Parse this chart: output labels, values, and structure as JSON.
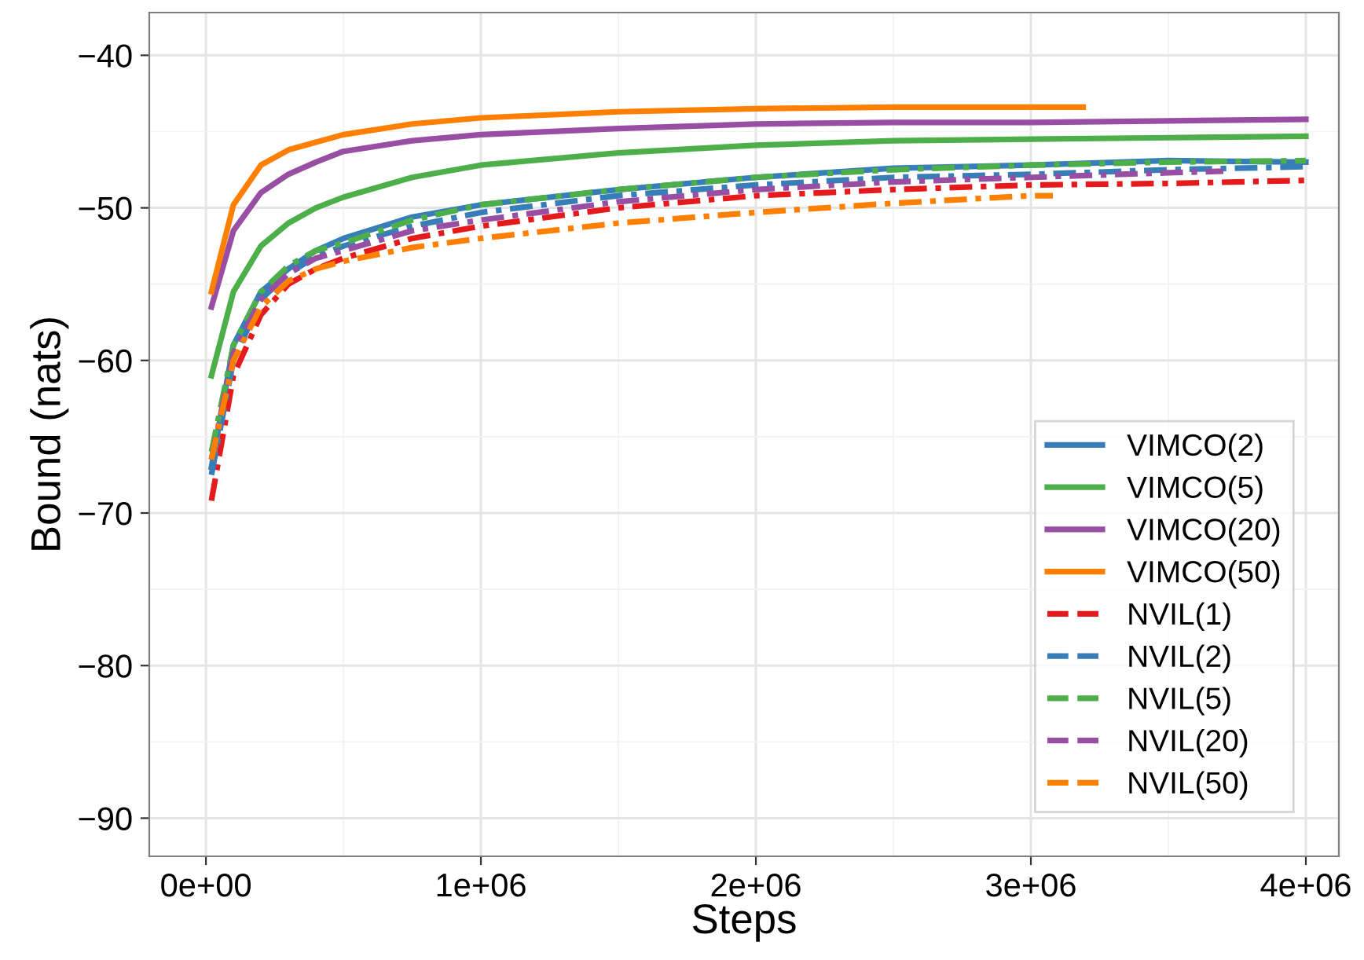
{
  "chart_data": {
    "type": "line",
    "xlabel": "Steps",
    "ylabel": "Bound (nats)",
    "x": [
      20000,
      100000,
      200000,
      300000,
      400000,
      500000,
      750000,
      1000000,
      1500000,
      2000000,
      2500000,
      3000000,
      3500000,
      4000000
    ],
    "series": [
      {
        "name": "VIMCO(2)",
        "color": "#377eb8",
        "line_style": "solid",
        "values": [
          -67,
          -59,
          -55.5,
          -54,
          -52.8,
          -52,
          -50.6,
          -49.8,
          -48.8,
          -48,
          -47.4,
          -47.2,
          -46.9,
          -47.0
        ]
      },
      {
        "name": "VIMCO(5)",
        "color": "#4daf4a",
        "line_style": "solid",
        "values": [
          -61,
          -55.5,
          -52.5,
          -51,
          -50,
          -49.3,
          -48,
          -47.2,
          -46.4,
          -45.9,
          -45.6,
          -45.5,
          -45.4,
          -45.3
        ]
      },
      {
        "name": "VIMCO(20)",
        "color": "#984ea3",
        "line_style": "solid",
        "values": [
          -56.5,
          -51.5,
          -49,
          -47.8,
          -47,
          -46.3,
          -45.6,
          -45.2,
          -44.8,
          -44.5,
          -44.4,
          -44.4,
          -44.3,
          -44.2
        ]
      },
      {
        "name": "VIMCO(50)",
        "color": "#ff7f00",
        "line_style": "solid",
        "x": [
          20000,
          100000,
          200000,
          300000,
          400000,
          500000,
          750000,
          1000000,
          1500000,
          2000000,
          2500000,
          3000000,
          3190000
        ],
        "values": [
          -55.5,
          -49.8,
          -47.2,
          -46.2,
          -45.7,
          -45.2,
          -44.5,
          -44.1,
          -43.7,
          -43.5,
          -43.4,
          -43.4,
          -43.4
        ]
      },
      {
        "name": "NVIL(1)",
        "color": "#e41a1c",
        "line_style": "dashed",
        "values": [
          -69.2,
          -61,
          -57,
          -55,
          -54,
          -53.3,
          -52,
          -51.2,
          -50,
          -49.2,
          -48.8,
          -48.5,
          -48.4,
          -48.2
        ]
      },
      {
        "name": "NVIL(2)",
        "color": "#377eb8",
        "line_style": "dashed",
        "values": [
          -67.5,
          -60,
          -56,
          -54.3,
          -53.2,
          -52.5,
          -51.2,
          -50.3,
          -49.2,
          -48.5,
          -48,
          -47.8,
          -47.5,
          -47.3
        ]
      },
      {
        "name": "NVIL(5)",
        "color": "#4daf4a",
        "line_style": "dashed",
        "values": [
          -66,
          -59,
          -55.5,
          -53.8,
          -52.8,
          -52.3,
          -50.8,
          -49.8,
          -48.8,
          -48,
          -47.5,
          -47.2,
          -47,
          -46.9
        ]
      },
      {
        "name": "NVIL(20)",
        "color": "#984ea3",
        "line_style": "dashed",
        "x": [
          20000,
          100000,
          200000,
          300000,
          400000,
          500000,
          750000,
          1000000,
          1500000,
          2000000,
          2500000,
          3000000,
          3500000,
          3700000
        ],
        "values": [
          -66.5,
          -59.5,
          -56,
          -54.3,
          -53.3,
          -52.8,
          -51.5,
          -50.8,
          -49.6,
          -48.8,
          -48.3,
          -48,
          -47.7,
          -47.6
        ]
      },
      {
        "name": "NVIL(50)",
        "color": "#ff7f00",
        "line_style": "dashed",
        "x": [
          20000,
          100000,
          200000,
          300000,
          400000,
          500000,
          750000,
          1000000,
          1500000,
          2000000,
          2500000,
          3000000,
          3080000
        ],
        "values": [
          -66.5,
          -60,
          -56.5,
          -54.8,
          -54,
          -53.5,
          -52.6,
          -52,
          -51,
          -50.3,
          -49.7,
          -49.2,
          -49.2
        ]
      }
    ],
    "xlim": [
      -206000,
      4120000
    ],
    "ylim": [
      -92.5,
      -37.2
    ],
    "xticks": [
      {
        "value": 0,
        "label": "0e+00"
      },
      {
        "value": 1000000,
        "label": "1e+06"
      },
      {
        "value": 2000000,
        "label": "2e+06"
      },
      {
        "value": 3000000,
        "label": "3e+06"
      },
      {
        "value": 4000000,
        "label": "4e+06"
      }
    ],
    "yticks": [
      {
        "value": -90,
        "label": "−90"
      },
      {
        "value": -80,
        "label": "−80"
      },
      {
        "value": -70,
        "label": "−70"
      },
      {
        "value": -60,
        "label": "−60"
      },
      {
        "value": -50,
        "label": "−50"
      },
      {
        "value": -40,
        "label": "−40"
      }
    ],
    "grid": true,
    "legend": "bottom right",
    "marker": "none"
  }
}
